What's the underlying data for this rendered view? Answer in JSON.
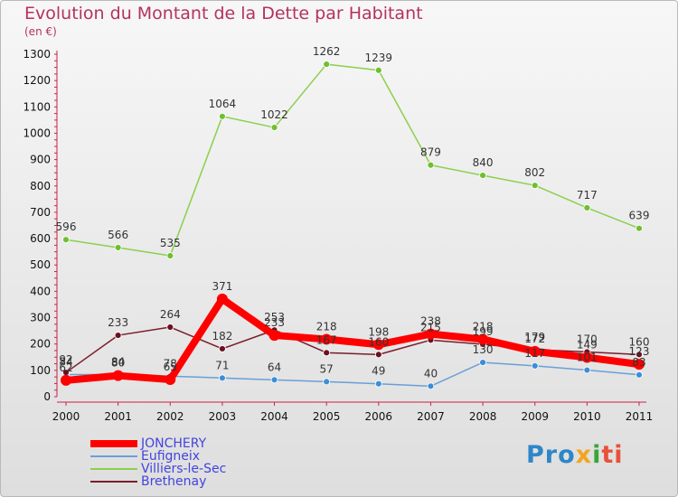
{
  "chart_data": {
    "type": "line",
    "title": "Evolution du Montant de la Dette par Habitant",
    "unit_label": "(en €)",
    "x": [
      "2000",
      "2001",
      "2002",
      "2003",
      "2004",
      "2005",
      "2006",
      "2007",
      "2008",
      "2009",
      "2010",
      "2011"
    ],
    "ylim": [
      0,
      1300
    ],
    "yticks": [
      0,
      100,
      200,
      300,
      400,
      500,
      600,
      700,
      800,
      900,
      1000,
      1100,
      1200,
      1300
    ],
    "grid": false,
    "legend_position": "bottom-left",
    "series": [
      {
        "name": "Villiers-le-Sec",
        "color": "#8ccf4d",
        "point_color": "#6fbf2f",
        "values": [
          596,
          566,
          535,
          1064,
          1022,
          1262,
          1239,
          879,
          840,
          802,
          717,
          639
        ]
      },
      {
        "name": "Eufigneix",
        "color": "#6a9fd6",
        "point_color": "#3d8ed8",
        "values": [
          84,
          84,
          78,
          71,
          64,
          57,
          49,
          40,
          130,
          117,
          101,
          83
        ]
      },
      {
        "name": "Brethenay",
        "color": "#7a1d2a",
        "point_color": "#6b1020",
        "values": [
          92,
          233,
          264,
          182,
          253,
          167,
          160,
          215,
          199,
          179,
          170,
          160
        ]
      },
      {
        "name": "JONCHERY",
        "color": "#ff0000",
        "point_color": "#ff0000",
        "values": [
          62,
          80,
          65,
          371,
          233,
          218,
          198,
          238,
          218,
          172,
          149,
          123
        ]
      }
    ],
    "legend_order": [
      "JONCHERY",
      "Eufigneix",
      "Villiers-le-Sec",
      "Brethenay"
    ]
  },
  "logo": {
    "text": "Proxiti",
    "parts": [
      "Pro",
      "x",
      "i",
      "ti"
    ]
  }
}
